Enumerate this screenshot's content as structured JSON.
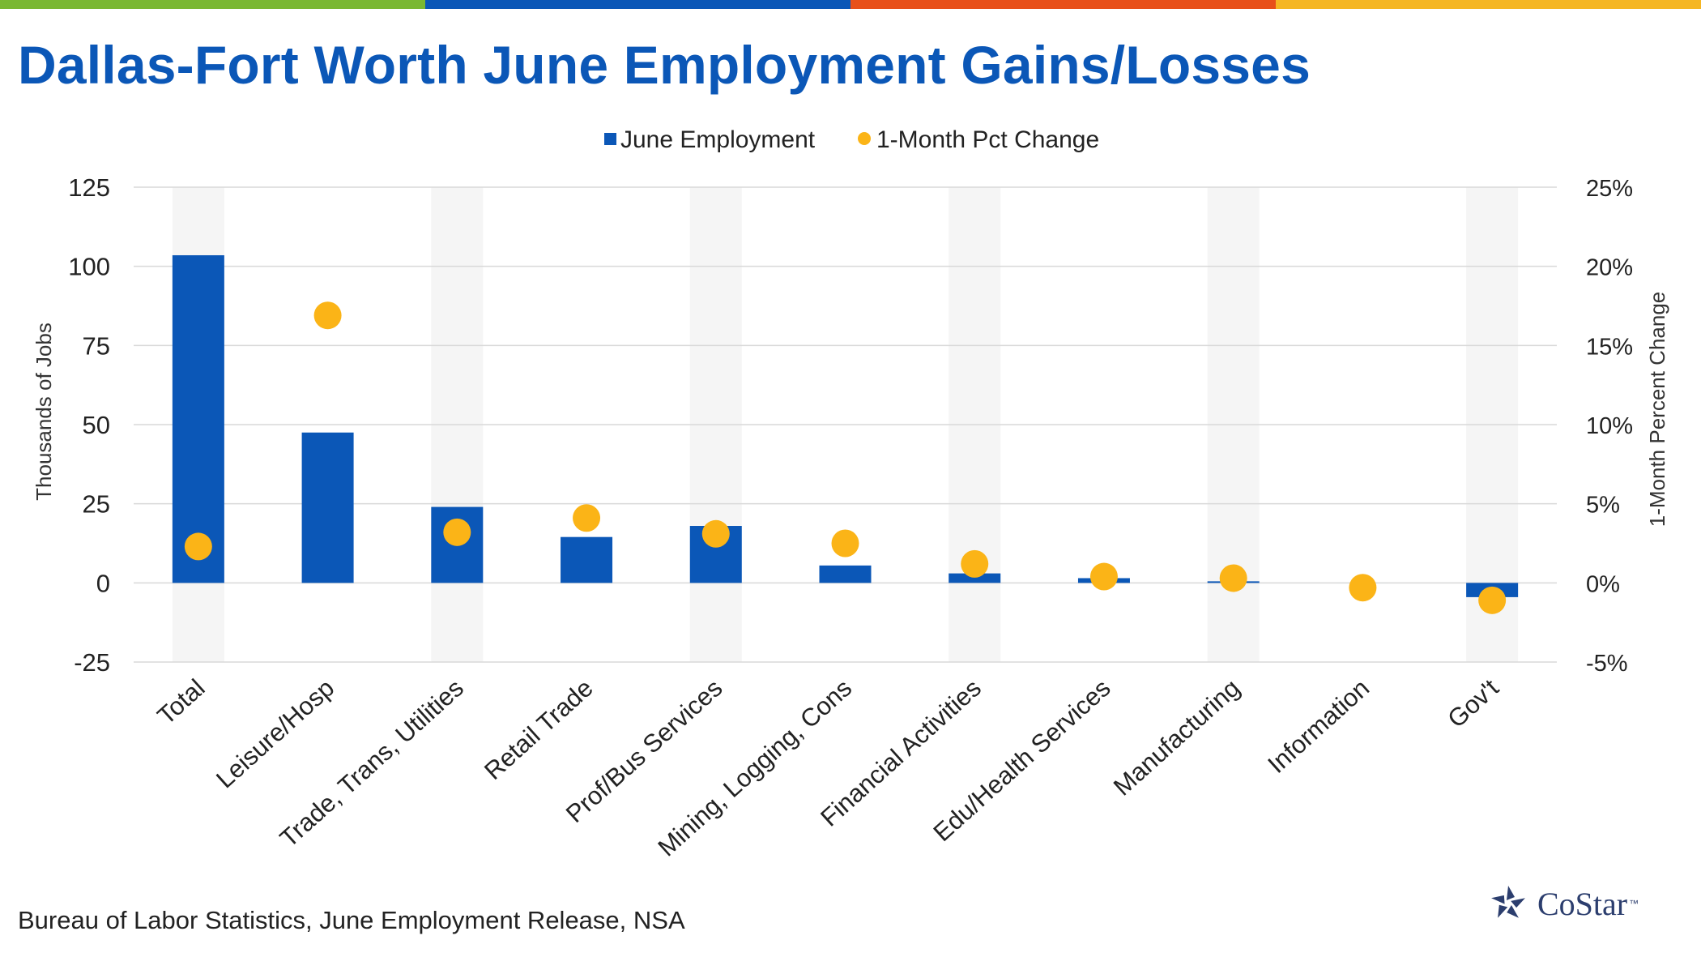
{
  "colors": {
    "stripes": [
      "#7ab832",
      "#0b57b7",
      "#e8501a",
      "#f5b623"
    ],
    "title": "#0b57b7",
    "bar": "#0b57b7",
    "dot": "#fbb417",
    "band": "#f5f5f5",
    "grid": "#d9d9d9",
    "logo": "#2c3e6e"
  },
  "title": "Dallas-Fort Worth June Employment Gains/Losses",
  "source": "Bureau of Labor Statistics, June Employment Release, NSA",
  "logo": {
    "text": "CoStar",
    "tm": "™"
  },
  "chart_data": {
    "type": "bar",
    "categories": [
      "Total",
      "Leisure/Hosp",
      "Trade, Trans, Utilities",
      "Retail Trade",
      "Prof/Bus Services",
      "Mining, Logging, Cons",
      "Financial Activities",
      "Edu/Health Services",
      "Manufacturing",
      "Information",
      "Gov't"
    ],
    "series": [
      {
        "name": "June Employment",
        "kind": "bar",
        "axis": "left",
        "values": [
          103.5,
          47.5,
          24,
          14.5,
          18,
          5.5,
          3,
          1.5,
          0.5,
          0,
          -4.5
        ]
      },
      {
        "name": "1-Month Pct Change",
        "kind": "dot",
        "axis": "right",
        "values": [
          2.3,
          16.9,
          3.2,
          4.1,
          3.1,
          2.5,
          1.2,
          0.4,
          0.3,
          -0.3,
          -1.1
        ]
      }
    ],
    "ylabel": "Thousands  of Jobs",
    "y2label": "1-Month  Percent  Change",
    "ylim": [
      -25,
      125
    ],
    "y2lim": [
      -5,
      25
    ],
    "yticks": [
      "-25",
      "0",
      "25",
      "50",
      "75",
      "100",
      "125"
    ],
    "y2ticks": [
      "-5%",
      "0%",
      "5%",
      "10%",
      "15%",
      "20%",
      "25%"
    ],
    "legend_position": "top-center",
    "grid": true
  }
}
